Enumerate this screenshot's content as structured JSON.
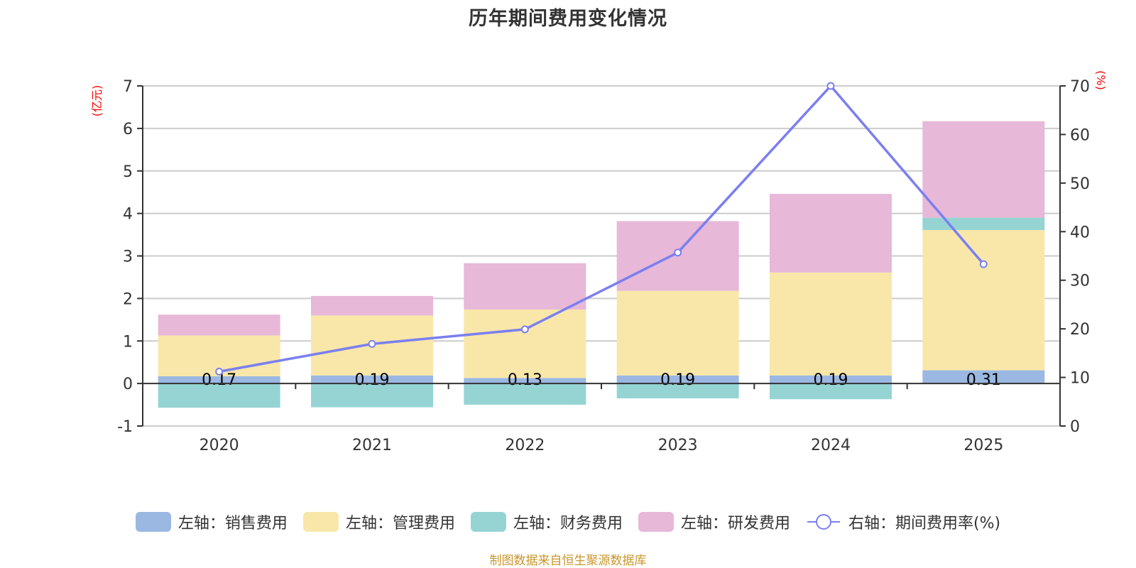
{
  "chart_data": {
    "type": "bar",
    "subtype": "stacked-bar-with-line",
    "title": "历年期间费用变化情况",
    "categories": [
      "2020",
      "2021",
      "2022",
      "2023",
      "2024",
      "2025"
    ],
    "left_axis": {
      "unit_label": "(亿元)",
      "ylim": [
        -1,
        7
      ],
      "ticks": [
        "-1",
        "0",
        "1",
        "2",
        "3",
        "4",
        "5",
        "6",
        "7"
      ]
    },
    "right_axis": {
      "unit_label": "(%)",
      "ylim": [
        0,
        70
      ],
      "ticks": [
        "0",
        "10",
        "20",
        "30",
        "40",
        "50",
        "60",
        "70"
      ]
    },
    "series": [
      {
        "name": "左轴：销售费用",
        "axis": "left",
        "kind": "bar",
        "color": "#9bb8e2",
        "values": [
          0.17,
          0.19,
          0.13,
          0.19,
          0.19,
          0.31
        ],
        "data_labels": [
          "0.17",
          "0.19",
          "0.13",
          "0.19",
          "0.19",
          "0.31"
        ]
      },
      {
        "name": "左轴：管理费用",
        "axis": "left",
        "kind": "bar",
        "color": "#f8e7a9",
        "values": [
          0.96,
          1.41,
          1.61,
          1.99,
          2.42,
          3.3
        ]
      },
      {
        "name": "左轴：财务费用",
        "axis": "left",
        "kind": "bar",
        "color": "#96d4d4",
        "values": [
          -0.57,
          -0.56,
          -0.5,
          -0.35,
          -0.37,
          0.29
        ]
      },
      {
        "name": "左轴：研发费用",
        "axis": "left",
        "kind": "bar",
        "color": "#e7b8d7",
        "values": [
          0.49,
          0.46,
          1.09,
          1.64,
          1.85,
          2.27
        ]
      },
      {
        "name": "右轴：期间费用率(%)",
        "axis": "right",
        "kind": "line",
        "color": "#7b7ff0",
        "values": [
          11.2,
          16.9,
          19.9,
          35.7,
          70.0,
          33.3
        ]
      }
    ],
    "grid": true,
    "legend_position": "bottom"
  },
  "source_note": "制图数据来自恒生聚源数据库"
}
